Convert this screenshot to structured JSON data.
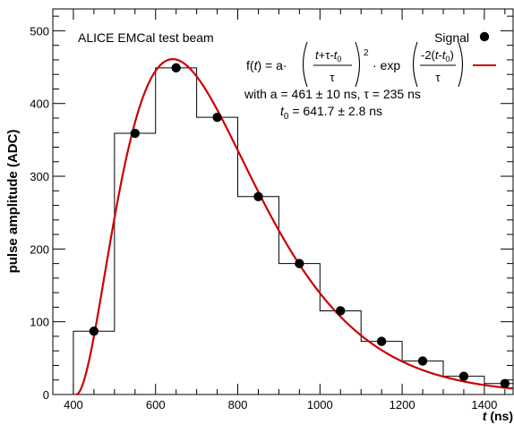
{
  "chart_data": {
    "type": "scatter",
    "title": "ALICE EMCal test beam",
    "xlabel": "t (ns)",
    "xlabel_parts": {
      "var": "t",
      "unit": "(ns)"
    },
    "ylabel": "pulse amplitude (ADC)",
    "xlim": [
      350,
      1470
    ],
    "ylim": [
      0,
      530
    ],
    "x_ticks": [
      400,
      600,
      800,
      1000,
      1200,
      1400
    ],
    "y_ticks": [
      0,
      100,
      200,
      300,
      400,
      500
    ],
    "grid": false,
    "legend_position": "top-right",
    "series": [
      {
        "name": "Signal",
        "style": "markers",
        "color": "#000000",
        "x": [
          450,
          550,
          650,
          750,
          850,
          950,
          1050,
          1150,
          1250,
          1350,
          1450
        ],
        "y": [
          87,
          359,
          449,
          381,
          272,
          180,
          115,
          73,
          46,
          25,
          15
        ]
      }
    ],
    "histogram": {
      "color": "#000000",
      "bins": [
        {
          "x0": 400,
          "x1": 500,
          "y": 87
        },
        {
          "x0": 500,
          "x1": 600,
          "y": 359
        },
        {
          "x0": 600,
          "x1": 700,
          "y": 449
        },
        {
          "x0": 700,
          "x1": 800,
          "y": 381
        },
        {
          "x0": 800,
          "x1": 900,
          "y": 272
        },
        {
          "x0": 900,
          "x1": 1000,
          "y": 180
        },
        {
          "x0": 1000,
          "x1": 1100,
          "y": 115
        },
        {
          "x0": 1100,
          "x1": 1200,
          "y": 73
        },
        {
          "x0": 1200,
          "x1": 1300,
          "y": 46
        },
        {
          "x0": 1300,
          "x1": 1400,
          "y": 25
        },
        {
          "x0": 1400,
          "x1": 1500,
          "y": 15
        }
      ]
    },
    "fit": {
      "color": "#cc0000",
      "a": 461,
      "tau": 235,
      "t0": 641.7
    },
    "annotations": {
      "formula_prefix": "f(",
      "formula_t": "t",
      "formula_mid": ") = a·",
      "frac1_num_a": "t",
      "frac1_num_b": "+τ-",
      "frac1_num_c": "t",
      "frac1_num_sub": "0",
      "frac1_den": "τ",
      "exponent": "2",
      "exp_prefix": "· exp",
      "frac2_num_a": "-2(",
      "frac2_num_b": "t",
      "frac2_num_c": "-",
      "frac2_num_d": "t",
      "frac2_num_sub": "0",
      "frac2_num_e": ")",
      "frac2_den": "τ",
      "params_line1": "with a = 461 ± 10 ns, τ = 235 ns",
      "params_line2_var": "t",
      "params_line2_sub": "0",
      "params_line2_rest": " = 641.7 ± 2.8 ns"
    }
  }
}
